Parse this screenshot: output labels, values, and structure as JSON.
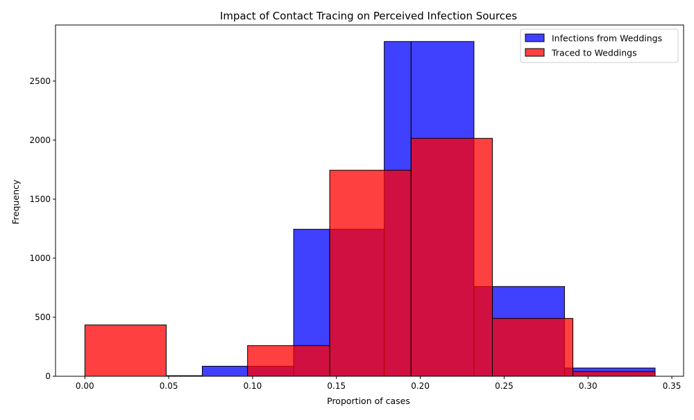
{
  "chart_data": {
    "type": "bar",
    "title": "Impact of Contact Tracing on Perceived Infection Sources",
    "xlabel": "Proportion of cases",
    "ylabel": "Frequency",
    "xlim": [
      -0.0175,
      0.357
    ],
    "ylim": [
      0,
      2975
    ],
    "x_ticks": [
      "0.00",
      "0.05",
      "0.10",
      "0.15",
      "0.20",
      "0.25",
      "0.30",
      "0.35"
    ],
    "y_ticks": [
      "0",
      "500",
      "1000",
      "1500",
      "2000",
      "2500"
    ],
    "legend_position": "upper right",
    "grid": false,
    "series": [
      {
        "name": "Infections from Weddings",
        "color": "#0000ff",
        "bins": [
          {
            "x0": 0.0485,
            "x1": 0.07,
            "value": 5
          },
          {
            "x0": 0.07,
            "x1": 0.097,
            "value": 85
          },
          {
            "x0": 0.097,
            "x1": 0.1245,
            "value": 85
          },
          {
            "x0": 0.1245,
            "x1": 0.146,
            "value": 1245
          },
          {
            "x0": 0.146,
            "x1": 0.1785,
            "value": 1245
          },
          {
            "x0": 0.1785,
            "x1": 0.1945,
            "value": 2835
          },
          {
            "x0": 0.1945,
            "x1": 0.232,
            "value": 2835
          },
          {
            "x0": 0.232,
            "x1": 0.243,
            "value": 760
          },
          {
            "x0": 0.243,
            "x1": 0.286,
            "value": 760
          },
          {
            "x0": 0.286,
            "x1": 0.291,
            "value": 70
          },
          {
            "x0": 0.291,
            "x1": 0.34,
            "value": 70
          }
        ]
      },
      {
        "name": "Traced to Weddings",
        "color": "#ff0000",
        "bins": [
          {
            "x0": 0.0,
            "x1": 0.0485,
            "value": 435
          },
          {
            "x0": 0.097,
            "x1": 0.146,
            "value": 260
          },
          {
            "x0": 0.146,
            "x1": 0.1945,
            "value": 1745
          },
          {
            "x0": 0.1945,
            "x1": 0.243,
            "value": 2015
          },
          {
            "x0": 0.243,
            "x1": 0.291,
            "value": 490
          },
          {
            "x0": 0.291,
            "x1": 0.34,
            "value": 40
          }
        ]
      }
    ]
  }
}
